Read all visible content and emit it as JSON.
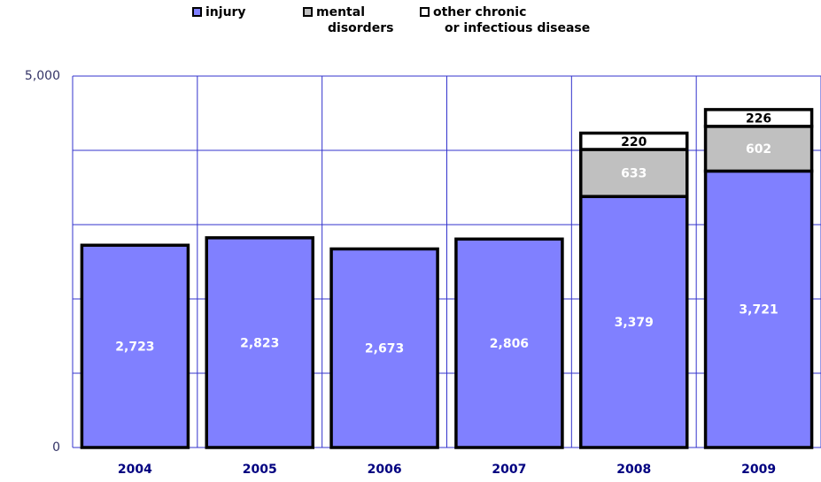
{
  "chart_data": {
    "type": "stacked_bar",
    "categories": [
      "2004",
      "2005",
      "2006",
      "2007",
      "2008",
      "2009"
    ],
    "series": [
      {
        "name": "injury",
        "color": "#8080ff",
        "label_color": "#ffffff",
        "values": [
          2723,
          2823,
          2673,
          2806,
          3379,
          3721
        ],
        "value_labels": [
          "2,723",
          "2,823",
          "2,673",
          "2,806",
          "3,379",
          "3,721"
        ]
      },
      {
        "name": "mental\ndisorders",
        "color": "#c0c0c0",
        "label_color": "#ffffff",
        "values": [
          null,
          null,
          null,
          null,
          633,
          602
        ],
        "value_labels": [
          null,
          null,
          null,
          null,
          "633",
          "602"
        ]
      },
      {
        "name": "other chronic\nor infectious disease",
        "color": "#ffffff",
        "label_color": "#000000",
        "values": [
          null,
          null,
          null,
          null,
          220,
          226
        ],
        "value_labels": [
          null,
          null,
          null,
          null,
          "220",
          "226"
        ]
      }
    ],
    "ylim": [
      0,
      5000
    ],
    "yticks": [
      0,
      {
        "value": 5000,
        "label": "5,000"
      }
    ],
    "minor_yticks": [
      1000,
      2000,
      3000,
      4000
    ],
    "grid": true
  }
}
